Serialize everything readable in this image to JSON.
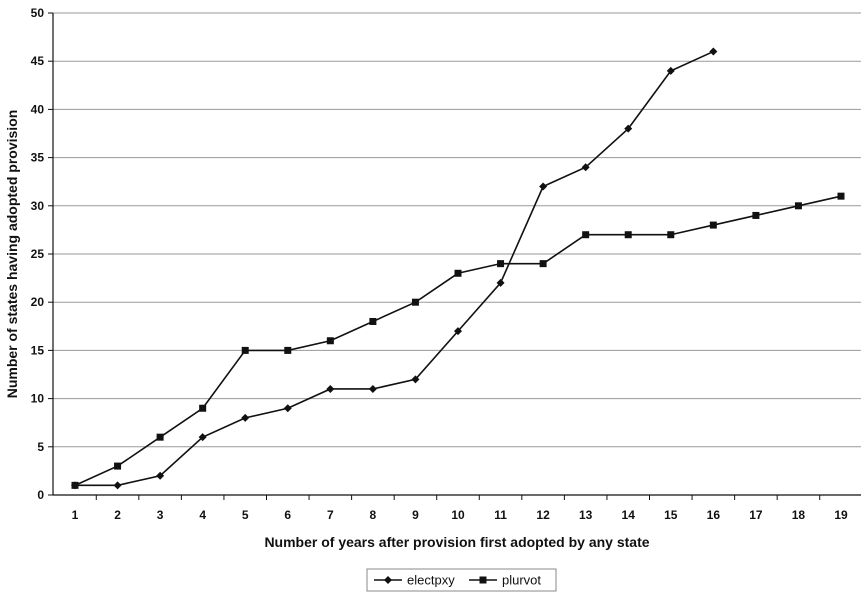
{
  "chart_data": {
    "type": "line",
    "title": "",
    "xlabel": "Number of years after provision first adopted by any state",
    "ylabel": "Number of states having adopted provision",
    "x_ticks": [
      1,
      2,
      3,
      4,
      5,
      6,
      7,
      8,
      9,
      10,
      11,
      12,
      13,
      14,
      15,
      16,
      17,
      18,
      19
    ],
    "xlim": [
      1,
      19
    ],
    "ylim": [
      0,
      50
    ],
    "y_ticks": [
      0,
      5,
      10,
      15,
      20,
      25,
      30,
      35,
      40,
      45,
      50
    ],
    "grid": "horizontal",
    "legend_position": "bottom-center",
    "series": [
      {
        "name": "electpxy",
        "marker": "diamond",
        "color": "#111111",
        "x": [
          1,
          2,
          3,
          4,
          5,
          6,
          7,
          8,
          9,
          10,
          11,
          12,
          13,
          14,
          15,
          16
        ],
        "values": [
          1,
          1,
          2,
          6,
          8,
          9,
          11,
          11,
          12,
          17,
          22,
          32,
          34,
          38,
          44,
          46
        ]
      },
      {
        "name": "plurvot",
        "marker": "square",
        "color": "#111111",
        "x": [
          1,
          2,
          3,
          4,
          5,
          6,
          7,
          8,
          9,
          10,
          11,
          12,
          13,
          14,
          15,
          16,
          17,
          18,
          19
        ],
        "values": [
          1,
          3,
          6,
          9,
          15,
          15,
          16,
          18,
          20,
          23,
          24,
          24,
          27,
          27,
          27,
          28,
          29,
          30,
          31
        ]
      }
    ]
  }
}
